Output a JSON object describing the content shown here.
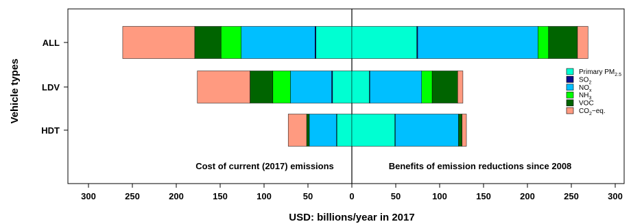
{
  "chart_data": {
    "type": "bar",
    "orientation": "horizontal",
    "stacked": true,
    "xlabel": "USD: billions/year in 2017",
    "ylabel": "Vehicle types",
    "xlim": [
      -320,
      320
    ],
    "x_ticks": [
      -300,
      -250,
      -200,
      -150,
      -100,
      -50,
      0,
      50,
      100,
      150,
      200,
      250,
      300
    ],
    "x_tick_labels": [
      "300",
      "250",
      "200",
      "150",
      "100",
      "50",
      "0",
      "50",
      "100",
      "150",
      "200",
      "250",
      "300"
    ],
    "categories": [
      "ALL",
      "LDV",
      "HDT"
    ],
    "annotations": {
      "left": "Cost of current (2017) emissions",
      "right": "Benefits of emission reductions since 2008"
    },
    "legend_position": "right",
    "series": [
      {
        "key": "pm25",
        "name": "Primary PM",
        "name_sub": "2.5",
        "color": "#00FFD2",
        "cost": [
          41,
          22,
          17
        ],
        "benefit": [
          74,
          20,
          49
        ]
      },
      {
        "key": "so2",
        "name": "SO",
        "name_sub": "2",
        "color": "#0A0A8C",
        "cost": [
          1,
          1,
          0.5
        ],
        "benefit": [
          1,
          0.5,
          0.5
        ]
      },
      {
        "key": "nox",
        "name": "NO",
        "name_sub": "x",
        "color": "#00BFFF",
        "cost": [
          84,
          47,
          31
        ],
        "benefit": [
          137,
          59,
          72
        ]
      },
      {
        "key": "nh3",
        "name": "NH",
        "name_sub": "3",
        "color": "#00FF00",
        "cost": [
          23,
          20,
          0
        ],
        "benefit": [
          12,
          12,
          0
        ]
      },
      {
        "key": "voc",
        "name": "VOC",
        "name_sub": "",
        "color": "#006400",
        "cost": [
          30,
          26,
          3
        ],
        "benefit": [
          33,
          29,
          4
        ]
      },
      {
        "key": "co2",
        "name": "CO",
        "name_sub": "2",
        "name_suffix": "−eq.",
        "color": "#FF9A80",
        "cost": [
          82,
          60,
          21
        ],
        "benefit": [
          12,
          6,
          5
        ]
      }
    ]
  }
}
